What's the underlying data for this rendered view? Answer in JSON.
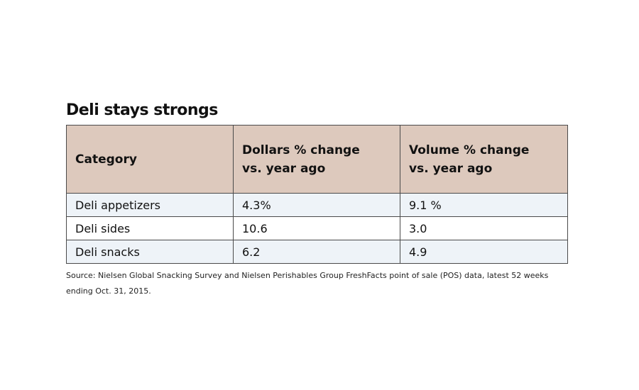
{
  "chart_data": {
    "type": "table",
    "title": "Deli stays strongs",
    "columns": [
      {
        "line1": "Category",
        "line2": ""
      },
      {
        "line1": "Dollars % change",
        "line2": "vs. year ago"
      },
      {
        "line1": "Volume % change",
        "line2": "vs. year ago"
      }
    ],
    "rows": [
      {
        "category": "Deli appetizers",
        "dollars": "4.3%",
        "volume": "9.1 %"
      },
      {
        "category": "Deli sides",
        "dollars": "10.6",
        "volume": "3.0"
      },
      {
        "category": "Deli snacks",
        "dollars": "6.2",
        "volume": "4.9"
      }
    ],
    "source": "Source: Nielsen Global Snacking Survey and Nielsen Perishables Group FreshFacts point of sale (POS) data, latest 52 weeks ending Oct. 31, 2015."
  },
  "colors": {
    "header_background": "#ddc9bd",
    "row_shade": "#eef3f8",
    "border": "#4a4a4a"
  }
}
